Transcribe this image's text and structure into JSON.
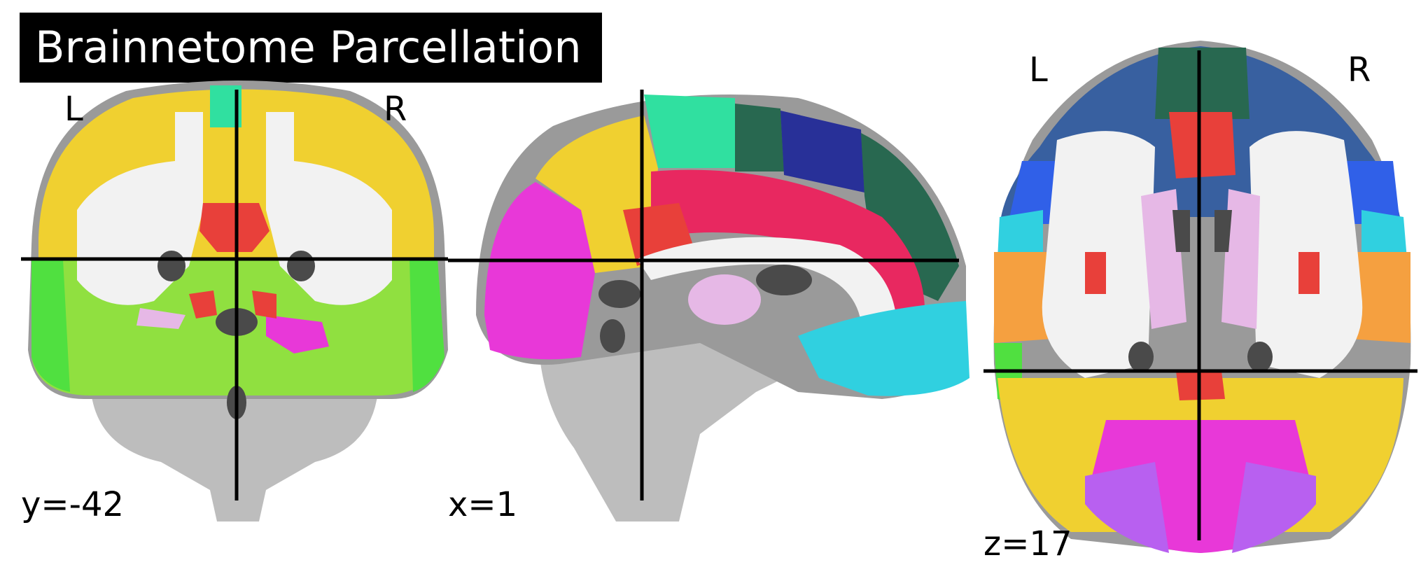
{
  "title": "Brainnetome Parcellation",
  "views": {
    "coronal": {
      "left_label": "L",
      "right_label": "R",
      "coord": "y=-42"
    },
    "sagittal": {
      "coord": "x=1"
    },
    "axial": {
      "left_label": "L",
      "right_label": "R",
      "coord": "z=17"
    }
  },
  "colors": {
    "crosshair": "#000000",
    "gray_matter": "#9a9a9a",
    "white_matter": "#f2f2f2",
    "dark_tissue": "#4a4a4a",
    "yellow": "#f0d030",
    "orange": "#f5a040",
    "red": "#e8403a",
    "crimson": "#e82860",
    "magenta": "#e838d8",
    "pink": "#e6b8e6",
    "lime": "#90e040",
    "green": "#50e040",
    "teal": "#30e0a0",
    "cyan": "#30d0e0",
    "blue": "#3060e8",
    "navy": "#283098",
    "dark_green": "#286850",
    "slate_blue": "#3860a0",
    "purple": "#b860f0"
  }
}
